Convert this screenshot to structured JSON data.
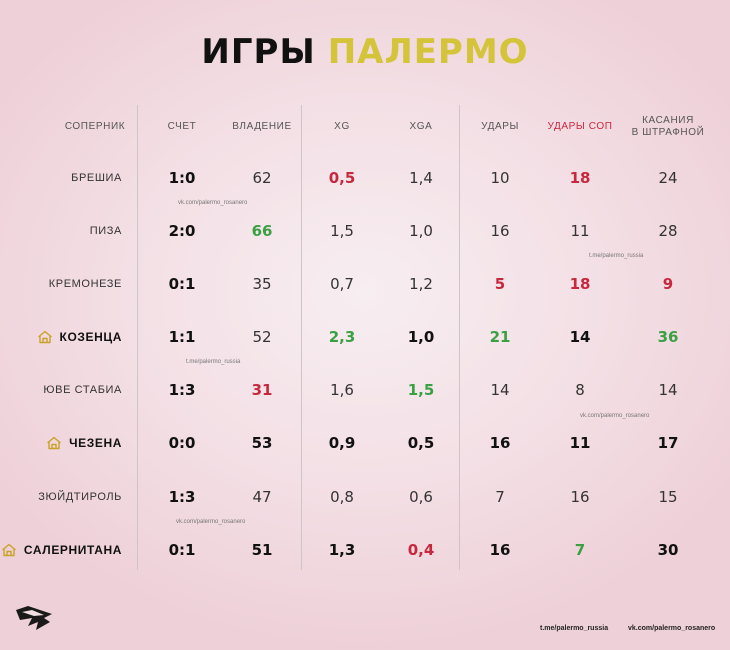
{
  "title": {
    "part1": "ИГРЫ",
    "part2": "ПАЛЕРМО"
  },
  "headers": {
    "opponent": "СОПЕРНИК",
    "score": "СЧЕТ",
    "possession": "ВЛАДЕНИЕ",
    "xg": "XG",
    "xga": "XGA",
    "shots": "УДАРЫ",
    "shots_on_target": "УДАРЫ СОП",
    "box_touches_1": "КАСАНИЯ",
    "box_touches_2": "В ШТРАФНОЙ"
  },
  "rows": [
    {
      "opponent": "БРЕШИА",
      "home": false,
      "score": "1:0",
      "possession": "62",
      "xg": "0,5",
      "xga": "1,4",
      "shots": "10",
      "sot": "18",
      "touches": "24"
    },
    {
      "opponent": "ПИЗА",
      "home": false,
      "score": "2:0",
      "possession": "66",
      "xg": "1,5",
      "xga": "1,0",
      "shots": "16",
      "sot": "11",
      "touches": "28"
    },
    {
      "opponent": "КРЕМОНЕЗЕ",
      "home": false,
      "score": "0:1",
      "possession": "35",
      "xg": "0,7",
      "xga": "1,2",
      "shots": "5",
      "sot": "18",
      "touches": "9"
    },
    {
      "opponent": "КОЗЕНЦА",
      "home": true,
      "score": "1:1",
      "possession": "52",
      "xg": "2,3",
      "xga": "1,0",
      "shots": "21",
      "sot": "14",
      "touches": "36"
    },
    {
      "opponent": "ЮВЕ СТАБИА",
      "home": false,
      "score": "1:3",
      "possession": "31",
      "xg": "1,6",
      "xga": "1,5",
      "shots": "14",
      "sot": "8",
      "touches": "14"
    },
    {
      "opponent": "ЧЕЗЕНА",
      "home": true,
      "score": "0:0",
      "possession": "53",
      "xg": "0,9",
      "xga": "0,5",
      "shots": "16",
      "sot": "11",
      "touches": "17"
    },
    {
      "opponent": "ЗЮЙДТИРОЛЬ",
      "home": false,
      "score": "1:3",
      "possession": "47",
      "xg": "0,8",
      "xga": "0,6",
      "shots": "7",
      "sot": "16",
      "touches": "15"
    },
    {
      "opponent": "САЛЕРНИТАНА",
      "home": true,
      "score": "0:1",
      "possession": "51",
      "xg": "1,3",
      "xga": "0,4",
      "shots": "16",
      "sot": "7",
      "touches": "30"
    }
  ],
  "watermarks": {
    "vk": "vk.com/palermo_rosanero",
    "tme": "t.me/palermo_russia"
  },
  "footer": {
    "left": "t.me/palermo_russia",
    "right": "vk.com/palermo_rosanero"
  },
  "colors": {
    "accent_yellow": "#d4c43a",
    "red": "#c8283e",
    "green": "#3aa044",
    "home_icon": "#c9a227"
  }
}
